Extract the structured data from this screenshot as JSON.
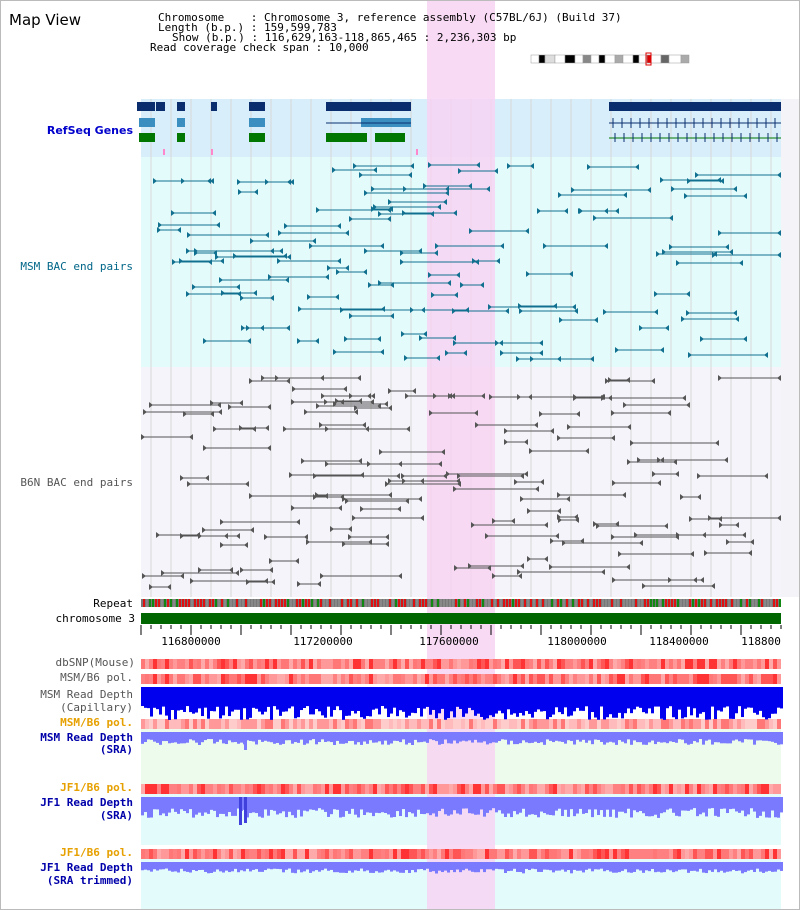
{
  "view": {
    "title": "Map View",
    "chromosome_label": "Chromosome",
    "chromosome_value": "Chromosome 3, reference assembly (C57BL/6J) (Build 37)",
    "length_label": "Length (b.p.)",
    "length_value": "159,599,783",
    "show_label": "Show (b.p.)",
    "show_value": "116,629,163-118,865,465 : 2,236,303 bp",
    "coverage_label": "Read coverage check span",
    "coverage_value": "10,000"
  },
  "tracks": {
    "refseq": "RefSeq Genes",
    "msm_bac": "MSM BAC end pairs",
    "b6n_bac": "B6N BAC end pairs",
    "repeat": "Repeat",
    "chromosome": "chromosome 3",
    "dbsnp": "dbSNP(Mouse)",
    "msm_b6_pol_1": "MSM/B6 pol.",
    "msm_depth_cap_1": "MSM Read Depth",
    "msm_depth_cap_2": "(Capillary)",
    "msm_b6_pol_2": "MSM/B6 pol.",
    "msm_depth_sra_1": "MSM Read Depth",
    "msm_depth_sra_2": "(SRA)",
    "jf1_pol_1": "JF1/B6 pol.",
    "jf1_depth_sra_1": "JF1 Read Depth",
    "jf1_depth_sra_2": "(SRA)",
    "jf1_pol_2": "JF1/B6 pol.",
    "jf1_depth_trim_1": "JF1 Read Depth",
    "jf1_depth_trim_2": "(SRA trimmed)"
  },
  "axis": {
    "ticks": [
      "116800000",
      "117200000",
      "117600000",
      "118000000",
      "118400000",
      "118800"
    ]
  },
  "colors": {
    "refseq_bg": "#d8eefa",
    "msm_bg": "#e4fbfb",
    "b6n_bg": "#f4f4fa",
    "highlight": "#f7d4f2",
    "gene_dark": "#0a2d6e",
    "gene_mid": "#3a8fc0",
    "gene_green": "#007700",
    "bac_msm": "#11708f",
    "bac_b6n": "#555555",
    "chrom_bar": "#006600",
    "depth_blue": "#0000ee",
    "depth_light": "#7a7aff"
  }
}
